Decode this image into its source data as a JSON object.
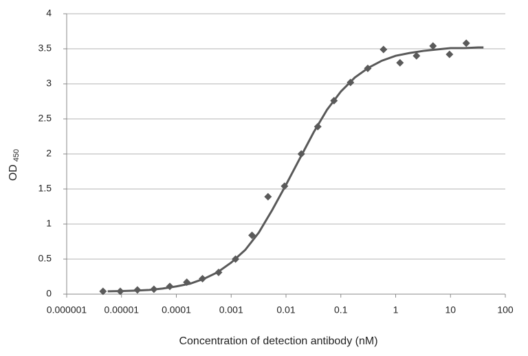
{
  "chart_data": {
    "type": "scatter",
    "x_label": "Concentration of detection antibody (nM)",
    "y_label": {
      "text": "OD",
      "subscript": "450"
    },
    "xscale": "log",
    "grid": true,
    "xlim": [
      1e-06,
      100
    ],
    "xticks": [
      1e-06,
      1e-05,
      0.0001,
      0.001,
      0.01,
      0.1,
      1,
      10,
      100
    ],
    "ylim": [
      0,
      4
    ],
    "yticks": [
      0,
      0.5,
      1,
      1.5,
      2,
      2.5,
      3,
      3.5,
      4
    ],
    "points": {
      "color": "#5a5a5a",
      "x": [
        4.6e-06,
        9.5e-06,
        1.95e-05,
        3.9e-05,
        7.6e-05,
        0.000155,
        0.0003,
        0.00059,
        0.0012,
        0.0024,
        0.0047,
        0.0094,
        0.019,
        0.038,
        0.075,
        0.15,
        0.31,
        0.6,
        1.2,
        2.4,
        4.8,
        9.6,
        19.4
      ],
      "y": [
        0.04,
        0.04,
        0.06,
        0.07,
        0.11,
        0.17,
        0.22,
        0.31,
        0.5,
        0.84,
        1.39,
        1.54,
        2.0,
        2.39,
        2.76,
        3.02,
        3.22,
        3.49,
        3.3,
        3.4,
        3.54,
        3.42,
        3.58
      ]
    },
    "fit": {
      "color": "#595959",
      "x": [
        5.6e-06,
        1e-05,
        1.8e-05,
        3.2e-05,
        5.6e-05,
        0.0001,
        0.00018,
        0.00032,
        0.00056,
        0.001,
        0.0018,
        0.0032,
        0.0056,
        0.01,
        0.018,
        0.032,
        0.056,
        0.1,
        0.18,
        0.32,
        0.56,
        1,
        1.8,
        3.2,
        5.6,
        10,
        18,
        32,
        40
      ],
      "y": [
        0.04,
        0.044,
        0.05,
        0.06,
        0.08,
        0.11,
        0.15,
        0.22,
        0.31,
        0.45,
        0.63,
        0.88,
        1.2,
        1.56,
        1.94,
        2.31,
        2.63,
        2.89,
        3.09,
        3.23,
        3.33,
        3.4,
        3.44,
        3.47,
        3.49,
        3.51,
        3.51,
        3.52,
        3.52
      ]
    }
  }
}
